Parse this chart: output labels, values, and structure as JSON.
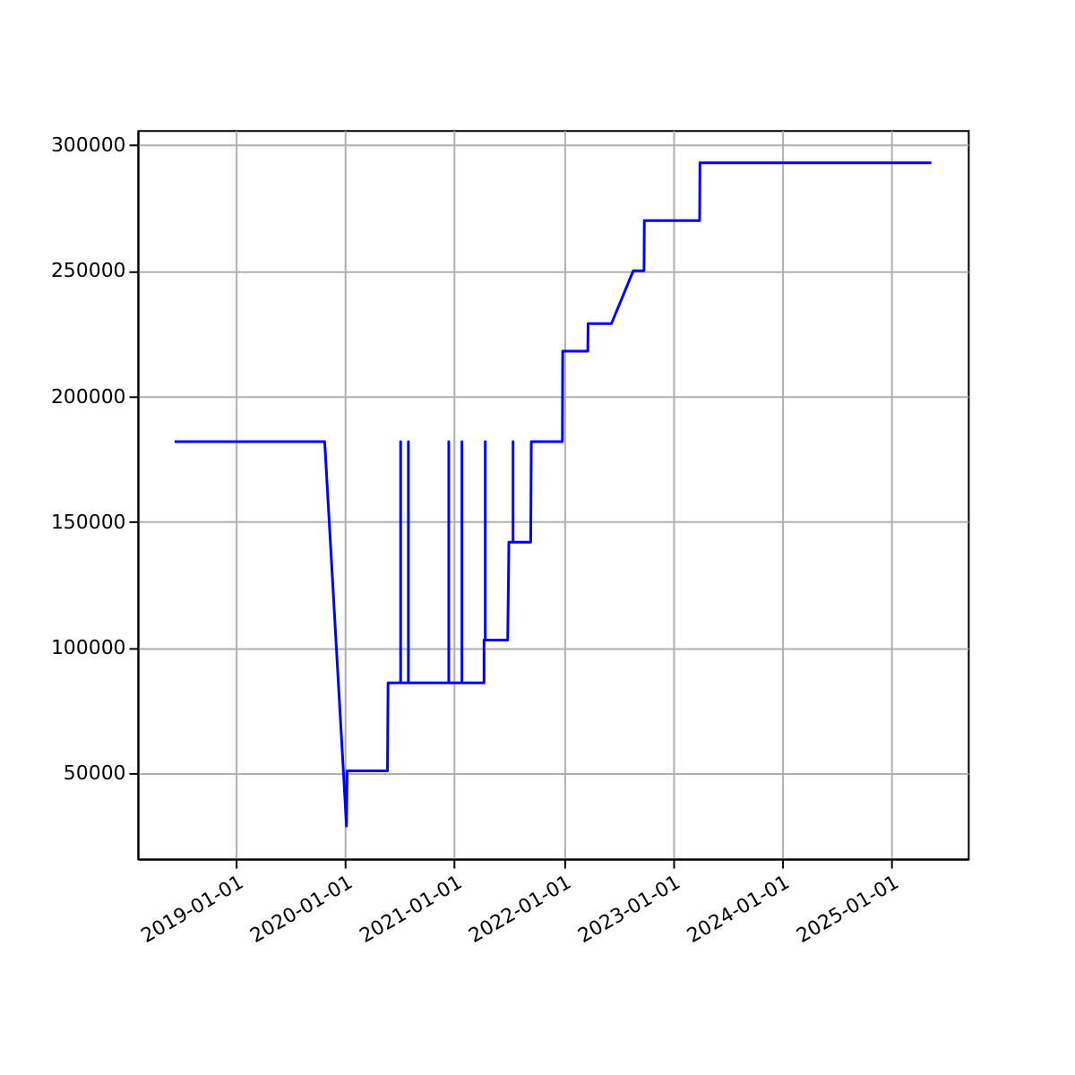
{
  "chart_data": {
    "type": "line",
    "x": [
      "2018-06-10",
      "2019-10-25",
      "2020-01-06",
      "2020-01-08",
      "2020-05-22",
      "2020-05-24",
      "2020-07-05",
      "2020-07-05",
      "2020-07-05",
      "2020-07-31",
      "2020-07-31",
      "2020-07-31",
      "2020-12-13",
      "2020-12-13",
      "2020-12-13",
      "2021-01-26",
      "2021-01-26",
      "2021-01-26",
      "2021-04-10",
      "2021-04-10",
      "2021-04-14",
      "2021-04-14",
      "2021-04-14",
      "2021-06-28",
      "2021-06-30",
      "2021-07-02",
      "2021-07-16",
      "2021-07-16",
      "2021-07-16",
      "2021-09-13",
      "2021-09-15",
      "2021-12-28",
      "2021-12-29",
      "2022-03-23",
      "2022-03-24",
      "2022-06-10",
      "2022-08-22",
      "2022-09-27",
      "2022-09-28",
      "2023-04-01",
      "2023-04-02",
      "2025-05-15"
    ],
    "series": [
      {
        "color": "#0000ff",
        "values": [
          182000,
          182000,
          29000,
          51000,
          51000,
          86000,
          86000,
          182000,
          86000,
          86000,
          182000,
          86000,
          86000,
          182000,
          86000,
          86000,
          182000,
          86000,
          86000,
          103000,
          103000,
          182000,
          103000,
          103000,
          121000,
          142000,
          142000,
          182000,
          142000,
          142000,
          182000,
          182000,
          218000,
          218000,
          229000,
          229000,
          250000,
          250000,
          270000,
          270000,
          293000,
          293000
        ]
      }
    ],
    "xlim": [
      "2018-02-06",
      "2025-09-14"
    ],
    "xticks": [
      "2019-01-01",
      "2020-01-01",
      "2021-01-01",
      "2022-01-01",
      "2023-01-01",
      "2024-01-01",
      "2025-01-01"
    ],
    "ylim": [
      16000,
      306000
    ],
    "yticks": [
      50000,
      100000,
      150000,
      200000,
      250000,
      300000
    ],
    "grid": true
  }
}
